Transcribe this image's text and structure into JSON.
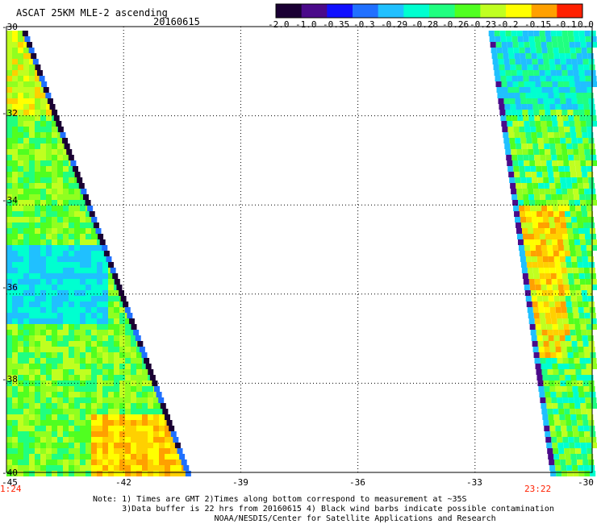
{
  "header": {
    "title": "ASCAT 25KM MLE-2 ascending",
    "date": "20160615"
  },
  "colorbar": {
    "labels": [
      "-2.0",
      "-1.0",
      "-0.35",
      "-0.3",
      "-0.29",
      "-0.28",
      "-0.26",
      "-0.23",
      "-0.2",
      "-0.15",
      "-0.1",
      "0.0"
    ],
    "colors": [
      "#1a0033",
      "#4a0a8a",
      "#1010ff",
      "#2070ff",
      "#20c0ff",
      "#00ffd0",
      "#20ff80",
      "#50ff20",
      "#c0ff20",
      "#ffff00",
      "#ffa000",
      "#ff2000"
    ]
  },
  "axes": {
    "lat_labels": [
      "-30",
      "-32",
      "-34",
      "-36",
      "-38",
      "-40"
    ],
    "lon_labels": [
      "-45",
      "-42",
      "-39",
      "-36",
      "-33",
      "-30"
    ]
  },
  "swath_times": {
    "left": "1:24",
    "right": "23:22"
  },
  "notes": {
    "line1": "Note: 1) Times are GMT 2)Times along bottom correspond to measurement at ~35S",
    "line2": "      3)Data buffer is 22 hrs from 20160615 4) Black wind barbs indicate possible contamination",
    "line3": "                         NOAA/NESDIS/Center for Satellite Applications and Research"
  },
  "map_data": {
    "lat_range": [
      -40,
      -30
    ],
    "lon_range": [
      -45,
      -30
    ],
    "grid_lat": [
      -32,
      -34,
      -36,
      -38
    ],
    "grid_lon": [
      -42,
      -39,
      -36,
      -33
    ]
  }
}
